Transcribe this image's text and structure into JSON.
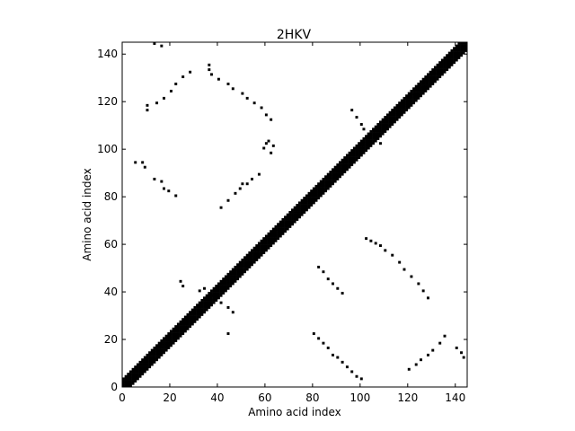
{
  "chart_data": {
    "type": "heatmap",
    "title": "2HKV",
    "xlabel": "Amino acid index",
    "ylabel": "Amino acid index",
    "xlim": [
      0,
      145
    ],
    "ylim": [
      0,
      145
    ],
    "x_ticks": [
      0,
      20,
      40,
      60,
      80,
      100,
      120,
      140
    ],
    "y_ticks": [
      0,
      20,
      40,
      60,
      80,
      100,
      120,
      140
    ],
    "cell_color": "#000000",
    "background_color": "#ffffff",
    "grid": false,
    "diagonal_band": {
      "from": 0,
      "to": 145,
      "half_width": 3
    },
    "contacts": [
      [
        13,
        144
      ],
      [
        16,
        143
      ],
      [
        10,
        118
      ],
      [
        10,
        116
      ],
      [
        14,
        119
      ],
      [
        17,
        121
      ],
      [
        20,
        124
      ],
      [
        22,
        127
      ],
      [
        25,
        130
      ],
      [
        28,
        132
      ],
      [
        36,
        133
      ],
      [
        36,
        135
      ],
      [
        37,
        131
      ],
      [
        40,
        129
      ],
      [
        44,
        127
      ],
      [
        46,
        125
      ],
      [
        50,
        123
      ],
      [
        52,
        121
      ],
      [
        55,
        119
      ],
      [
        58,
        117
      ],
      [
        60,
        114
      ],
      [
        62,
        112
      ],
      [
        5,
        94
      ],
      [
        8,
        94
      ],
      [
        9,
        92
      ],
      [
        13,
        87
      ],
      [
        16,
        86
      ],
      [
        17,
        83
      ],
      [
        19,
        82
      ],
      [
        22,
        80
      ],
      [
        41,
        75
      ],
      [
        44,
        78
      ],
      [
        47,
        81
      ],
      [
        49,
        83
      ],
      [
        50,
        85
      ],
      [
        52,
        85
      ],
      [
        54,
        87
      ],
      [
        57,
        89
      ],
      [
        59,
        100
      ],
      [
        60,
        102
      ],
      [
        61,
        103
      ],
      [
        63,
        101
      ],
      [
        62,
        98
      ],
      [
        80,
        22
      ],
      [
        82,
        20
      ],
      [
        84,
        18
      ],
      [
        86,
        16
      ],
      [
        88,
        13
      ],
      [
        90,
        12
      ],
      [
        92,
        10
      ],
      [
        94,
        8
      ],
      [
        96,
        6
      ],
      [
        98,
        4
      ],
      [
        100,
        3
      ],
      [
        102,
        62
      ],
      [
        104,
        61
      ],
      [
        106,
        60
      ],
      [
        108,
        59
      ],
      [
        110,
        57
      ],
      [
        113,
        55
      ],
      [
        116,
        52
      ],
      [
        118,
        49
      ],
      [
        121,
        46
      ],
      [
        124,
        43
      ],
      [
        126,
        40
      ],
      [
        128,
        37
      ],
      [
        82,
        50
      ],
      [
        84,
        48
      ],
      [
        86,
        45
      ],
      [
        88,
        43
      ],
      [
        90,
        41
      ],
      [
        92,
        39
      ],
      [
        120,
        7
      ],
      [
        123,
        9
      ],
      [
        125,
        11
      ],
      [
        128,
        13
      ],
      [
        130,
        15
      ],
      [
        133,
        18
      ],
      [
        135,
        21
      ],
      [
        140,
        16
      ],
      [
        142,
        14
      ],
      [
        143,
        12
      ],
      [
        96,
        116
      ],
      [
        98,
        113
      ],
      [
        100,
        110
      ],
      [
        101,
        108
      ],
      [
        103,
        106
      ],
      [
        106,
        104
      ],
      [
        108,
        102
      ],
      [
        24,
        44
      ],
      [
        25,
        42
      ],
      [
        32,
        40
      ],
      [
        34,
        41
      ],
      [
        38,
        38
      ],
      [
        41,
        35
      ],
      [
        44,
        33
      ],
      [
        46,
        31
      ],
      [
        44,
        22
      ],
      [
        20,
        18
      ],
      [
        14,
        16
      ],
      [
        82,
        84
      ],
      [
        126,
        128
      ]
    ]
  }
}
